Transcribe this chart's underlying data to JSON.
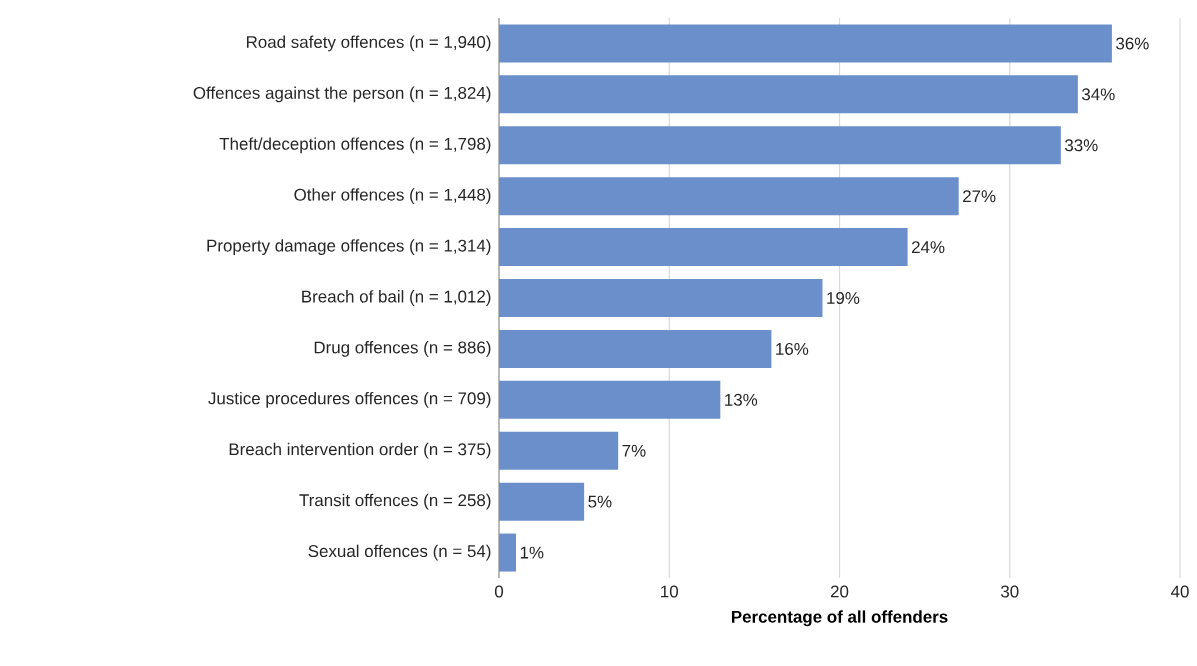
{
  "chart_data": {
    "type": "bar",
    "orientation": "horizontal",
    "categories": [
      "Road safety offences (n = 1,940)",
      "Offences against the person (n = 1,824)",
      "Theft/deception offences (n = 1,798)",
      "Other offences (n = 1,448)",
      "Property damage offences (n = 1,314)",
      "Breach of bail (n = 1,012)",
      "Drug offences (n = 886)",
      "Justice procedures offences (n = 709)",
      "Breach intervention order (n = 375)",
      "Transit offences (n = 258)",
      "Sexual offences (n = 54)"
    ],
    "values": [
      36,
      34,
      33,
      27,
      24,
      19,
      16,
      13,
      7,
      5,
      1
    ],
    "value_labels": [
      "36%",
      "34%",
      "33%",
      "27%",
      "24%",
      "19%",
      "16%",
      "13%",
      "7%",
      "5%",
      "1%"
    ],
    "color": "#6b8fca",
    "xlabel": "Percentage of all offenders",
    "xlim": [
      0,
      40
    ],
    "xticks": [
      0,
      10,
      20,
      30,
      40
    ],
    "grid": "x"
  }
}
